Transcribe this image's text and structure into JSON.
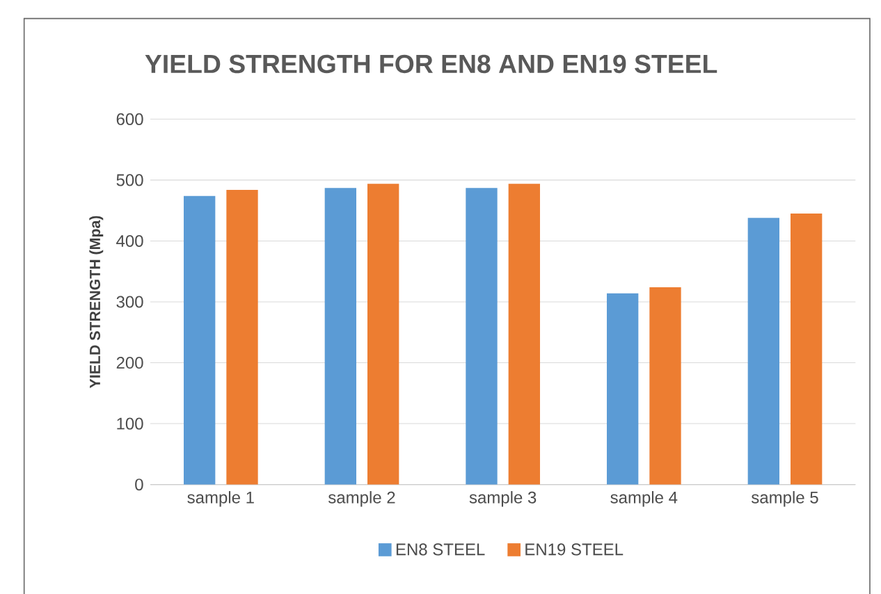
{
  "chart_data": {
    "type": "bar",
    "title": "YIELD STRENGTH FOR EN8 AND EN19 STEEL",
    "ylabel": "YIELD STRENGTH  (Mpa)",
    "categories": [
      "sample 1",
      "sample 2",
      "sample 3",
      "sample 4",
      "sample 5"
    ],
    "series": [
      {
        "name": "EN8 STEEL",
        "color": "#5b9bd5",
        "values": [
          474,
          487,
          487,
          314,
          438
        ]
      },
      {
        "name": "EN19 STEEL",
        "color": "#ed7d31",
        "values": [
          484,
          494,
          494,
          324,
          445
        ]
      }
    ],
    "ylim": [
      0,
      600
    ],
    "yticks": [
      0,
      100,
      200,
      300,
      400,
      500,
      600
    ],
    "grid": "y",
    "legend": "bottom"
  }
}
